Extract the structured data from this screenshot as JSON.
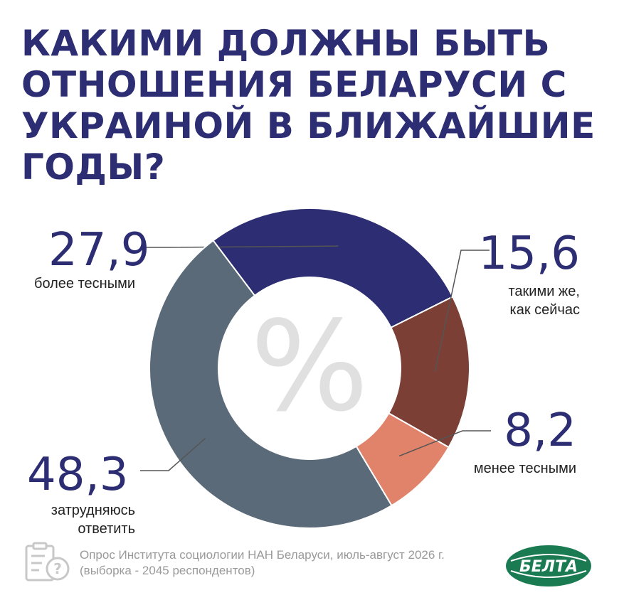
{
  "title": {
    "lines": [
      "КАКИМИ ДОЛЖНЫ БЫТЬ",
      "ОТНОШЕНИЯ БЕЛАРУСИ С",
      "УКРАИНОЙ В БЛИЖАЙШИЕ",
      "ГОДЫ?"
    ]
  },
  "center_symbol": "%",
  "chart_data": {
    "type": "pie",
    "donut": true,
    "title": "КАКИМИ ДОЛЖНЫ БЫТЬ ОТНОШЕНИЯ БЕЛАРУСИ С УКРАИНОЙ В БЛИЖАЙШИЕ ГОДЫ?",
    "slices": [
      {
        "label": "более тесными",
        "value": 27.9,
        "value_text": "27,9",
        "color": "#2c2d72"
      },
      {
        "label": "такими же, как сейчас",
        "value": 15.6,
        "value_text": "15,6",
        "color": "#7b3f35"
      },
      {
        "label": "менее тесными",
        "value": 8.2,
        "value_text": "8,2",
        "color": "#e0836a"
      },
      {
        "label": "затрудняюсь ответить",
        "value": 48.3,
        "value_text": "48,3",
        "color": "#5b6a78"
      }
    ]
  },
  "labels": {
    "closer": {
      "value": "27,9",
      "text": "более тесными"
    },
    "same": {
      "value": "15,6",
      "line1": "такими же,",
      "line2": "как сейчас"
    },
    "less": {
      "value": "8,2",
      "text": "менее тесными"
    },
    "hard": {
      "value": "48,3",
      "line1": "затрудняюсь",
      "line2": "ответить"
    }
  },
  "footer": {
    "line1": "Опрос Института социологии НАН Беларуси, июль-август 2026 г.",
    "line2": "(выборка - 2045 респондентов)"
  },
  "logo": {
    "text": "БЕЛТА",
    "color": "#1a7a52"
  },
  "icons": {
    "survey": "clipboard-question-icon"
  },
  "colors": {
    "title": "#2c2d72",
    "leader": "#555555",
    "center_symbol": "#e0e0e0"
  }
}
